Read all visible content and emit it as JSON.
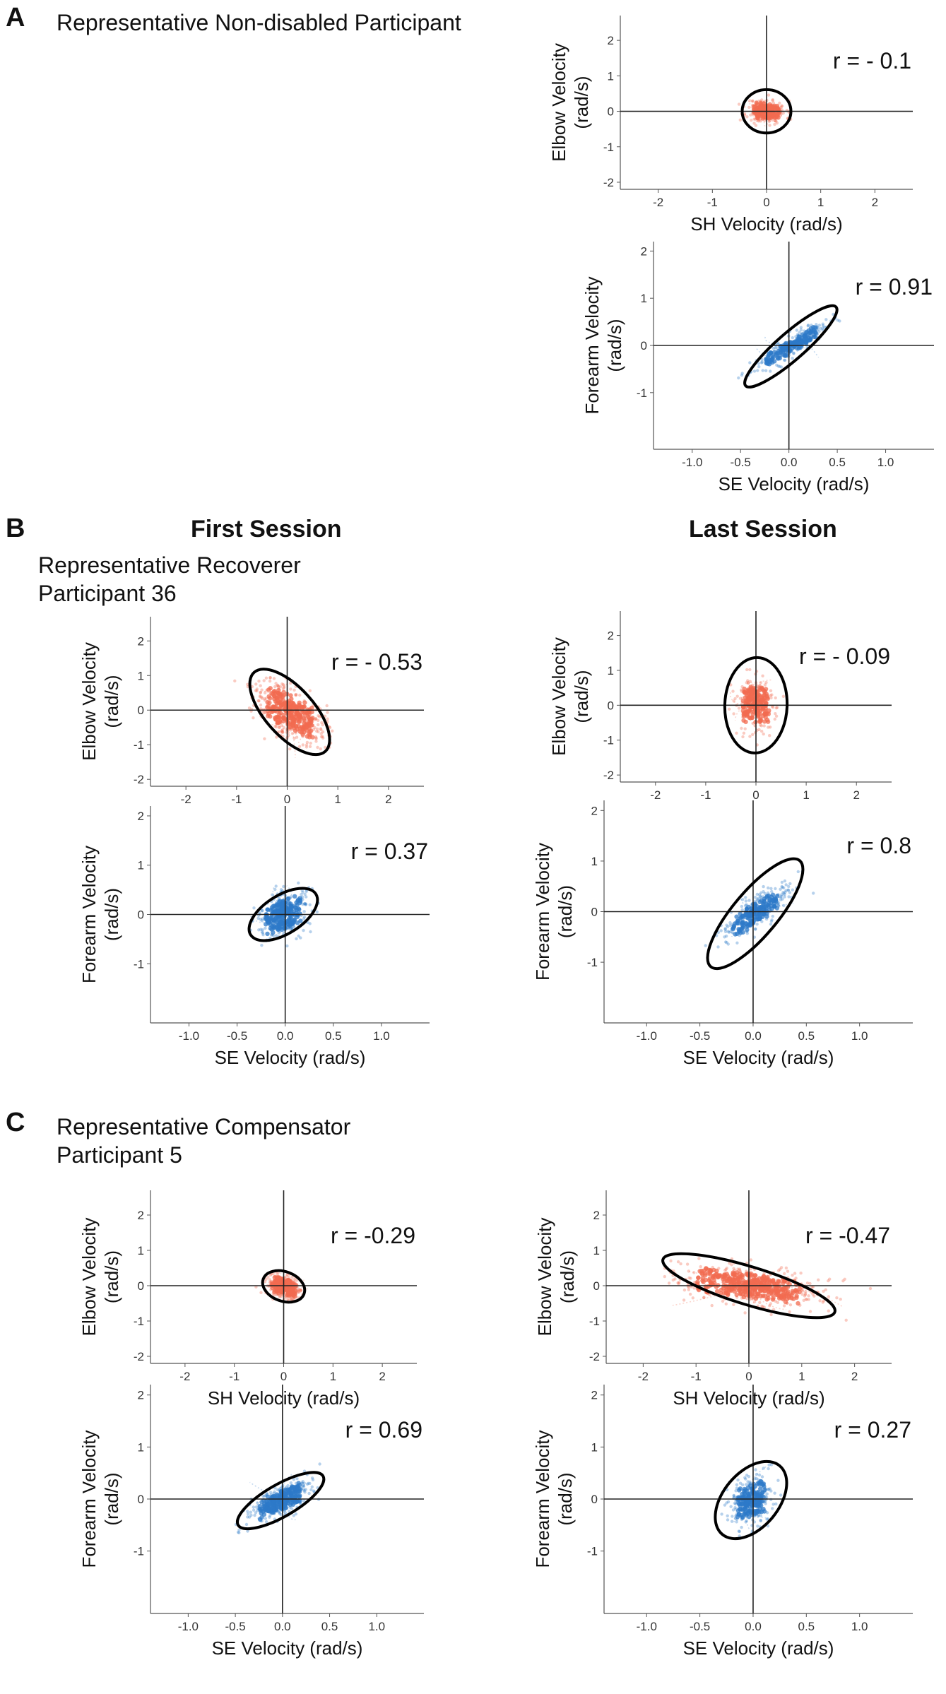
{
  "panels": {
    "A": {
      "letter": "A",
      "caption": "Representative  Non-disabled Participant"
    },
    "B": {
      "letter": "B",
      "caption_line1": "Representative Recoverer",
      "caption_line2": "Participant 36",
      "first_session": "First Session",
      "last_session": "Last Session"
    },
    "C": {
      "letter": "C",
      "caption_line1": "Representative  Compensator",
      "caption_line2": "Participant 5"
    }
  },
  "colors": {
    "elbow_scatter": "#f26b50",
    "forearm_scatter": "#2e7ac8",
    "ellipse": "#000000",
    "axis": "#222222"
  },
  "chart_data": [
    {
      "id": "A-elbow",
      "panel": "A",
      "type": "scatter",
      "xlabel": "SH Velocity (rad/s)",
      "ylabel": [
        "Elbow Velocity",
        "(rad/s)"
      ],
      "r_label": "r = - 0.1",
      "r": -0.1,
      "xlim": [
        -2.7,
        2.7
      ],
      "ylim": [
        -2.2,
        2.7
      ],
      "x_ticks": [
        -2,
        -1,
        0,
        1,
        2
      ],
      "y_ticks": [
        -2,
        -1,
        0,
        1,
        2
      ],
      "x_tick_labels": [
        "-2",
        "-1",
        "0",
        "1",
        "2"
      ],
      "y_tick_labels": [
        "-2",
        "-1",
        "0",
        "1",
        "2"
      ],
      "sx": 0.18,
      "sy": 0.17,
      "ellipse": {
        "cx": 0.0,
        "cy": 0.0,
        "rx": 0.45,
        "ry": 0.4,
        "angle": 0
      },
      "color": "#f26b50",
      "seed": 11,
      "n": 220,
      "spread": 0.12
    },
    {
      "id": "A-forearm",
      "panel": "A",
      "type": "scatter",
      "xlabel": "SE Velocity (rad/s)",
      "ylabel": [
        "Forearm Velocity",
        "(rad/s)"
      ],
      "r_label": "r = 0.91",
      "r": 0.91,
      "xlim": [
        -1.4,
        1.5
      ],
      "ylim": [
        -2.2,
        2.2
      ],
      "x_ticks": [
        -1,
        -0.5,
        0,
        0.5,
        1
      ],
      "y_ticks": [
        -1,
        0,
        1,
        2
      ],
      "x_tick_labels": [
        "-1.0",
        "-0.5",
        "0.0",
        "0.5",
        "1.0"
      ],
      "y_tick_labels": [
        "-1",
        "0",
        "1",
        "2"
      ],
      "sx": 0.2,
      "sy": 0.26,
      "ellipse": {
        "cx": 0.02,
        "cy": -0.02,
        "rx": 0.62,
        "ry": 0.14,
        "angle": 41
      },
      "color": "#2e7ac8",
      "seed": 23,
      "n": 240,
      "spread": 0.06
    },
    {
      "id": "B-first-elbow",
      "panel": "B",
      "type": "scatter",
      "xlabel": "",
      "ylabel": [
        "Elbow Velocity",
        "(rad/s)"
      ],
      "r_label": "r = - 0.53",
      "r": -0.53,
      "xlim": [
        -2.7,
        2.7
      ],
      "ylim": [
        -2.2,
        2.7
      ],
      "x_ticks": [
        -2,
        -1,
        0,
        1,
        2
      ],
      "y_ticks": [
        -2,
        -1,
        0,
        1,
        2
      ],
      "x_tick_labels": [
        "-2",
        "-1",
        "0",
        "1",
        "2"
      ],
      "y_tick_labels": [
        "-2",
        "-1",
        "0",
        "1",
        "2"
      ],
      "sx": 0.35,
      "sy": 0.45,
      "ellipse": {
        "cx": 0.05,
        "cy": -0.05,
        "rx": 1.05,
        "ry": 0.48,
        "angle": -48
      },
      "color": "#f26b50",
      "seed": 37,
      "n": 420,
      "spread": 0.25
    },
    {
      "id": "B-first-forearm",
      "panel": "B",
      "type": "scatter",
      "xlabel": "SE Velocity (rad/s)",
      "ylabel": [
        "Forearm Velocity",
        "(rad/s)"
      ],
      "r_label": "r = 0.37",
      "r": 0.37,
      "xlim": [
        -1.4,
        1.5
      ],
      "ylim": [
        -2.2,
        2.2
      ],
      "x_ticks": [
        -1,
        -0.5,
        0,
        0.5,
        1
      ],
      "y_ticks": [
        -1,
        0,
        1,
        2
      ],
      "x_tick_labels": [
        "-1.0",
        "-0.5",
        "0.0",
        "0.5",
        "1.0"
      ],
      "y_tick_labels": [
        "-1",
        "0",
        "1",
        "2"
      ],
      "sx": 0.14,
      "sy": 0.25,
      "ellipse": {
        "cx": -0.02,
        "cy": 0.0,
        "rx": 0.4,
        "ry": 0.2,
        "angle": 32
      },
      "color": "#2e7ac8",
      "seed": 41,
      "n": 320,
      "spread": 0.2
    },
    {
      "id": "B-last-elbow",
      "panel": "B",
      "type": "scatter",
      "xlabel": "",
      "ylabel": [
        "Elbow Velocity",
        "(rad/s)"
      ],
      "r_label": "r = - 0.09",
      "r": -0.09,
      "xlim": [
        -2.7,
        2.7
      ],
      "ylim": [
        -2.2,
        2.7
      ],
      "x_ticks": [
        -2,
        -1,
        0,
        1,
        2
      ],
      "y_ticks": [
        -2,
        -1,
        0,
        1,
        2
      ],
      "x_tick_labels": [
        "-2",
        "-1",
        "0",
        "1",
        "2"
      ],
      "y_tick_labels": [
        "-2",
        "-1",
        "0",
        "1",
        "2"
      ],
      "sx": 0.2,
      "sy": 0.4,
      "ellipse": {
        "cx": 0.0,
        "cy": 0.0,
        "rx": 0.95,
        "ry": 0.62,
        "angle": 88
      },
      "color": "#f26b50",
      "seed": 53,
      "n": 260,
      "spread": 0.22
    },
    {
      "id": "B-last-forearm",
      "panel": "B",
      "type": "scatter",
      "xlabel": "SE Velocity (rad/s)",
      "ylabel": [
        "Forearm Velocity",
        "(rad/s)"
      ],
      "r_label": "r = 0.8",
      "r": 0.8,
      "xlim": [
        -1.4,
        1.5
      ],
      "ylim": [
        -2.2,
        2.2
      ],
      "x_ticks": [
        -1,
        -0.5,
        0,
        0.5,
        1
      ],
      "y_ticks": [
        -1,
        0,
        1,
        2
      ],
      "x_tick_labels": [
        "-1.0",
        "-0.5",
        "0.0",
        "0.5",
        "1.0"
      ],
      "y_tick_labels": [
        "-1",
        "0",
        "1",
        "2"
      ],
      "sx": 0.16,
      "sy": 0.28,
      "ellipse": {
        "cx": 0.02,
        "cy": -0.04,
        "rx": 0.65,
        "ry": 0.21,
        "angle": 50
      },
      "color": "#2e7ac8",
      "seed": 67,
      "n": 260,
      "spread": 0.15
    },
    {
      "id": "C-first-elbow",
      "panel": "C",
      "type": "scatter",
      "xlabel": "SH Velocity (rad/s)",
      "ylabel": [
        "Elbow Velocity",
        "(rad/s)"
      ],
      "r_label": "r = -0.29",
      "r": -0.29,
      "xlim": [
        -2.7,
        2.7
      ],
      "ylim": [
        -2.2,
        2.7
      ],
      "x_ticks": [
        -2,
        -1,
        0,
        1,
        2
      ],
      "y_ticks": [
        -2,
        -1,
        0,
        1,
        2
      ],
      "x_tick_labels": [
        "-2",
        "-1",
        "0",
        "1",
        "2"
      ],
      "y_tick_labels": [
        "-2",
        "-1",
        "0",
        "1",
        "2"
      ],
      "sx": 0.18,
      "sy": 0.18,
      "ellipse": {
        "cx": 0.0,
        "cy": -0.02,
        "rx": 0.3,
        "ry": 0.44,
        "angle": 70
      },
      "color": "#f26b50",
      "seed": 79,
      "n": 260,
      "spread": 0.2
    },
    {
      "id": "C-first-forearm",
      "panel": "C",
      "type": "scatter",
      "xlabel": "SE Velocity (rad/s)",
      "ylabel": [
        "Forearm Velocity",
        "(rad/s)"
      ],
      "r_label": "r = 0.69",
      "r": 0.69,
      "xlim": [
        -1.4,
        1.5
      ],
      "ylim": [
        -2.2,
        2.2
      ],
      "x_ticks": [
        -1,
        -0.5,
        0,
        0.5,
        1
      ],
      "y_ticks": [
        -1,
        0,
        1,
        2
      ],
      "x_tick_labels": [
        "-1.0",
        "-0.5",
        "0.0",
        "0.5",
        "1.0"
      ],
      "y_tick_labels": [
        "-1",
        "0",
        "1",
        "2"
      ],
      "sx": 0.17,
      "sy": 0.2,
      "ellipse": {
        "cx": -0.02,
        "cy": -0.03,
        "rx": 0.52,
        "ry": 0.17,
        "angle": 30
      },
      "color": "#2e7ac8",
      "seed": 83,
      "n": 320,
      "spread": 0.25
    },
    {
      "id": "C-last-elbow",
      "panel": "C",
      "type": "scatter",
      "xlabel": "SH Velocity (rad/s)",
      "ylabel": [
        "Elbow Velocity",
        "(rad/s)"
      ],
      "r_label": "r = -0.47",
      "r": -0.47,
      "xlim": [
        -2.7,
        2.7
      ],
      "ylim": [
        -2.2,
        2.7
      ],
      "x_ticks": [
        -2,
        -1,
        0,
        1,
        2
      ],
      "y_ticks": [
        -2,
        -1,
        0,
        1,
        2
      ],
      "x_tick_labels": [
        "-2",
        "-1",
        "0",
        "1",
        "2"
      ],
      "y_tick_labels": [
        "-2",
        "-1",
        "0",
        "1",
        "2"
      ],
      "sx": 0.75,
      "sy": 0.3,
      "ellipse": {
        "cx": 0.0,
        "cy": 0.0,
        "rx": 1.7,
        "ry": 0.36,
        "angle": -17
      },
      "color": "#f26b50",
      "seed": 97,
      "n": 520,
      "spread": 0.3
    },
    {
      "id": "C-last-forearm",
      "panel": "C",
      "type": "scatter",
      "xlabel": "SE Velocity (rad/s)",
      "ylabel": [
        "Forearm Velocity",
        "(rad/s)"
      ],
      "r_label": "r = 0.27",
      "r": 0.27,
      "xlim": [
        -1.4,
        1.5
      ],
      "ylim": [
        -2.2,
        2.2
      ],
      "x_ticks": [
        -1,
        -0.5,
        0,
        0.5,
        1
      ],
      "y_ticks": [
        -1,
        0,
        1,
        2
      ],
      "x_tick_labels": [
        "-1.0",
        "-0.5",
        "0.0",
        "0.5",
        "1.0"
      ],
      "y_tick_labels": [
        "-1",
        "0",
        "1",
        "2"
      ],
      "sx": 0.1,
      "sy": 0.25,
      "ellipse": {
        "cx": -0.02,
        "cy": -0.02,
        "rx": 0.42,
        "ry": 0.26,
        "angle": 50
      },
      "color": "#2e7ac8",
      "seed": 101,
      "n": 280,
      "spread": 0.3
    }
  ]
}
